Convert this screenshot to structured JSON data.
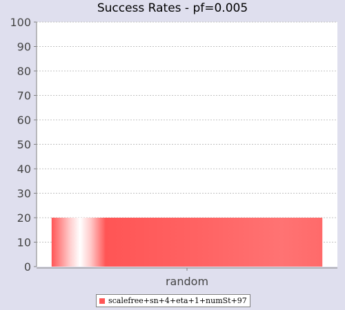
{
  "chart_data": {
    "type": "bar",
    "title": "Success Rates - pf=0.005",
    "xlabel": "",
    "ylabel": "",
    "categories": [
      "random"
    ],
    "series": [
      {
        "name": "scalefree+sn+4+eta+1+numSt+97",
        "values": [
          20
        ],
        "color": "#ff5555"
      }
    ],
    "ylim": [
      0,
      100
    ],
    "yticks": [
      "0",
      "10",
      "20",
      "30",
      "40",
      "50",
      "60",
      "70",
      "80",
      "90",
      "100"
    ],
    "grid": true,
    "legend": "bottom-center"
  }
}
